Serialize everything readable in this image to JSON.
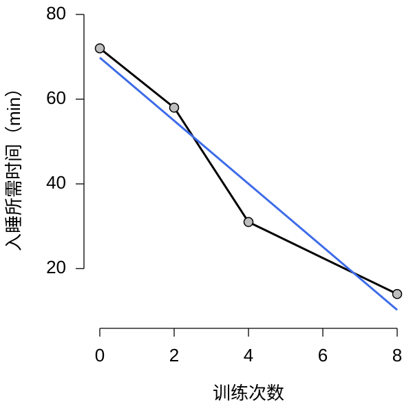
{
  "chart_data": {
    "type": "line",
    "xlabel": "训练次数",
    "ylabel": "入睡所需时间（min）",
    "series": [
      {
        "x": [
          0,
          2,
          4,
          8
        ],
        "values": [
          72,
          58,
          31,
          14
        ],
        "color": "#000000",
        "marker_fill": "#bebebe"
      },
      {
        "x": [
          0,
          8
        ],
        "values": [
          69.8,
          10.25
        ],
        "color": "#3d6be8"
      }
    ],
    "xlim": [
      0,
      8
    ],
    "xticks": [
      0,
      2,
      4,
      6,
      8
    ],
    "ylim": [
      5.9,
      80
    ],
    "yticks": [
      20,
      40,
      60,
      80
    ]
  }
}
